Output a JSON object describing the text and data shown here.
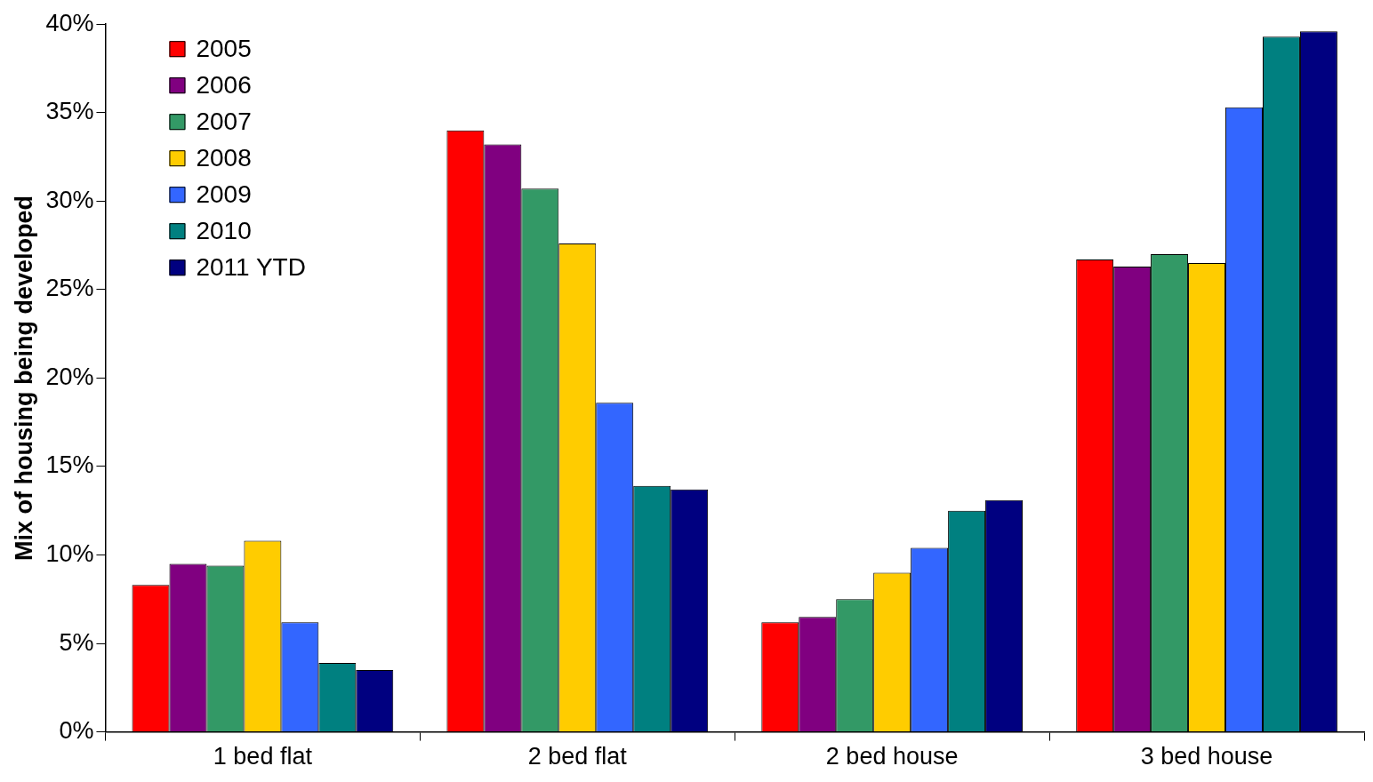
{
  "chart_data": {
    "type": "bar",
    "ylabel": "Mix of housing being developed",
    "categories": [
      "1 bed flat",
      "2 bed flat",
      "2 bed house",
      "3 bed house"
    ],
    "series": [
      {
        "name": "2005",
        "color": "#ff0000",
        "values": [
          8.3,
          34.0,
          6.2,
          26.7
        ]
      },
      {
        "name": "2006",
        "color": "#800080",
        "values": [
          9.5,
          33.2,
          6.5,
          26.3
        ]
      },
      {
        "name": "2007",
        "color": "#339966",
        "values": [
          9.4,
          30.7,
          7.5,
          27.0
        ]
      },
      {
        "name": "2008",
        "color": "#ffcc00",
        "values": [
          10.8,
          27.6,
          9.0,
          26.5
        ]
      },
      {
        "name": "2009",
        "color": "#3366ff",
        "values": [
          6.2,
          18.6,
          10.4,
          35.3
        ]
      },
      {
        "name": "2010",
        "color": "#008080",
        "values": [
          3.9,
          13.9,
          12.5,
          39.3
        ]
      },
      {
        "name": "2011 YTD",
        "color": "#000080",
        "values": [
          3.5,
          13.7,
          13.1,
          39.6
        ]
      }
    ],
    "ylim": [
      0,
      40
    ],
    "yticks": [
      {
        "value": 0,
        "label": "0%"
      },
      {
        "value": 5,
        "label": "5%"
      },
      {
        "value": 10,
        "label": "10%"
      },
      {
        "value": 15,
        "label": "15%"
      },
      {
        "value": 20,
        "label": "20%"
      },
      {
        "value": 25,
        "label": "25%"
      },
      {
        "value": 30,
        "label": "30%"
      },
      {
        "value": 35,
        "label": "35%"
      },
      {
        "value": 40,
        "label": "40%"
      }
    ],
    "grid": false,
    "legend": "top left"
  }
}
